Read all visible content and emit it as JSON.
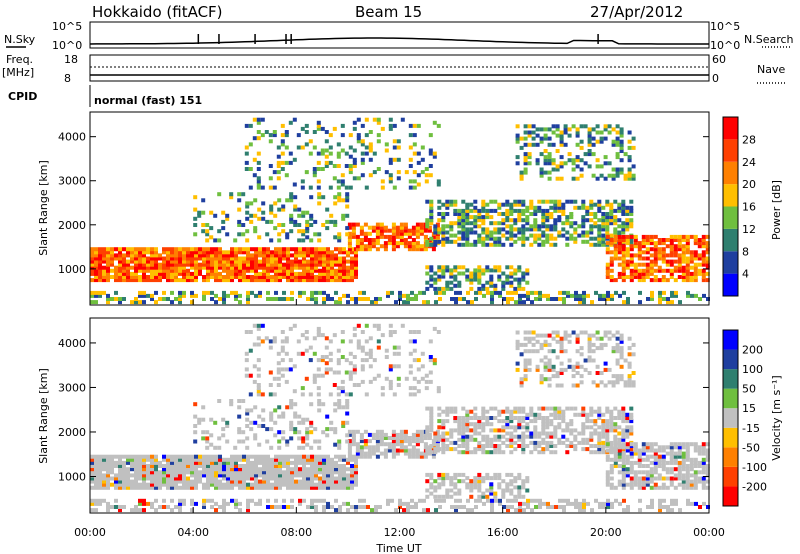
{
  "header": {
    "station": "Hokkaido (fitACF)",
    "beam": "Beam 15",
    "date": "27/Apr/2012"
  },
  "top_panels": {
    "nsky_label": "N.Sky",
    "nsky_ticks": [
      "10^5",
      "10^0"
    ],
    "nsearch_label": "N.Search",
    "nsearch_ticks": [
      "10^5",
      "10^0"
    ],
    "freq_label_1": "Freq.",
    "freq_label_2": "[MHz]",
    "freq_ticks": [
      "18",
      "8"
    ],
    "nave_label": "Nave",
    "nave_ticks": [
      "60",
      "0"
    ],
    "cpid_label": "CPID",
    "cpid_value": "normal (fast) 151"
  },
  "colors": {
    "power": [
      "#0000ff",
      "#1f3f9f",
      "#2f7f6f",
      "#6fbf3f",
      "#ffbf00",
      "#ff8000",
      "#ff4000",
      "#ff0000"
    ],
    "velocity": [
      "#ff0000",
      "#ff4000",
      "#ff8000",
      "#ffbf00",
      "#c0c0c0",
      "#6fbf3f",
      "#2f7f6f",
      "#1f3f9f",
      "#0000ff"
    ]
  },
  "chart_data": [
    {
      "type": "heatmap",
      "name": "power",
      "ylabel": "Slant Range [km]",
      "yticks": [
        1000,
        2000,
        3000,
        4000
      ],
      "xticks": [
        "00:00",
        "04:00",
        "08:00",
        "12:00",
        "16:00",
        "20:00",
        "00:00"
      ],
      "xlim_hours": [
        0,
        24
      ],
      "ylim_km": [
        180,
        4560
      ],
      "colorbar_label": "Power [dB]",
      "colorbar_ticks": [
        "4",
        "8",
        "12",
        "16",
        "20",
        "24",
        "28"
      ],
      "colorbar_range": [
        0,
        32
      ]
    },
    {
      "type": "heatmap",
      "name": "velocity",
      "ylabel": "Slant Range [km]",
      "yticks": [
        1000,
        2000,
        3000,
        4000
      ],
      "xticks": [
        "00:00",
        "04:00",
        "08:00",
        "12:00",
        "16:00",
        "20:00",
        "00:00"
      ],
      "xlim_hours": [
        0,
        24
      ],
      "ylim_km": [
        180,
        4560
      ],
      "xlabel": "Time UT",
      "colorbar_label": "Velocity [m s⁻¹]",
      "colorbar_ticks": [
        "-200",
        "-100",
        "-50",
        "-15",
        "15",
        "50",
        "100",
        "200"
      ]
    }
  ]
}
